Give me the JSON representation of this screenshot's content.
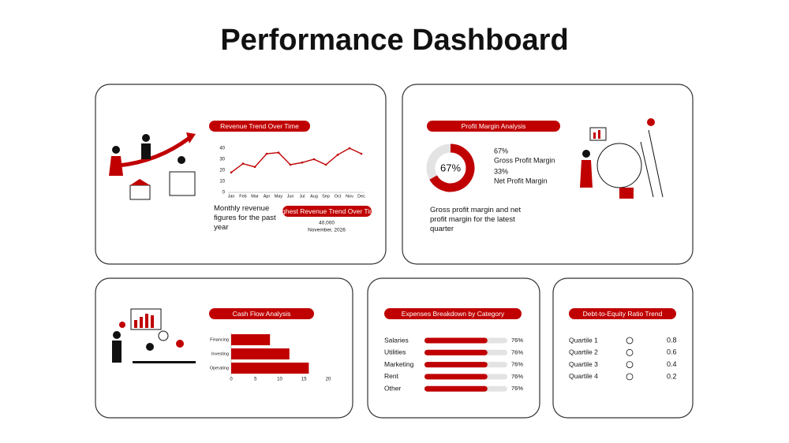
{
  "title": "Performance Dashboard",
  "chart_data": [
    {
      "type": "line",
      "title": "Revenue Trend Over Time",
      "categories": [
        "Jan",
        "Feb",
        "Mar",
        "Apr",
        "May",
        "Jun",
        "Jul",
        "Aug",
        "Sep",
        "Oct",
        "Nov",
        "Dec"
      ],
      "values": [
        18,
        26,
        23,
        35,
        36,
        25,
        27,
        30,
        25,
        34,
        40,
        35
      ],
      "color": "#c00000",
      "ylim": [
        0,
        40
      ],
      "yticks": [
        0,
        10,
        20,
        30,
        40
      ],
      "grid": false,
      "description": "Monthly revenue figures for the past year",
      "highlight_title": "Highest Revenue Trend Over Time",
      "highlight_value": "40,000",
      "highlight_date": "November, 2026"
    },
    {
      "type": "donut",
      "title": "Profit Margin Analysis",
      "categories": [
        "Gross Profit Margin",
        "Net Profit Margin"
      ],
      "values": [
        67,
        33
      ],
      "value_labels": [
        "67%",
        "33%"
      ],
      "colors": [
        "#c00000",
        "#e3e3e3"
      ],
      "description": "Gross profit margin and net profit margin for the latest quarter"
    },
    {
      "type": "barh",
      "title": "Cash Flow Analysis",
      "categories": [
        "Financing",
        "Investing",
        "Operating"
      ],
      "values": [
        8,
        12,
        16
      ],
      "color": "#c00000",
      "xlim": [
        0,
        20
      ],
      "xticks": [
        0,
        5,
        10,
        15,
        20
      ]
    },
    {
      "type": "progress",
      "title": "Expenses Breakdown by Category",
      "categories": [
        "Salaries",
        "Utilities",
        "Marketing",
        "Rent",
        "Other"
      ],
      "values": [
        76,
        76,
        76,
        76,
        76
      ],
      "value_labels": [
        "76%",
        "76%",
        "76%",
        "76%",
        "76%"
      ],
      "xlim": [
        0,
        100
      ],
      "color": "#c00000"
    },
    {
      "type": "list",
      "title": "Debt-to-Equity Ratio Trend",
      "categories": [
        "Quartile 1",
        "Quartile 2",
        "Quartile 3",
        "Quartile 4"
      ],
      "values": [
        0.8,
        0.6,
        0.4,
        0.2
      ]
    }
  ]
}
